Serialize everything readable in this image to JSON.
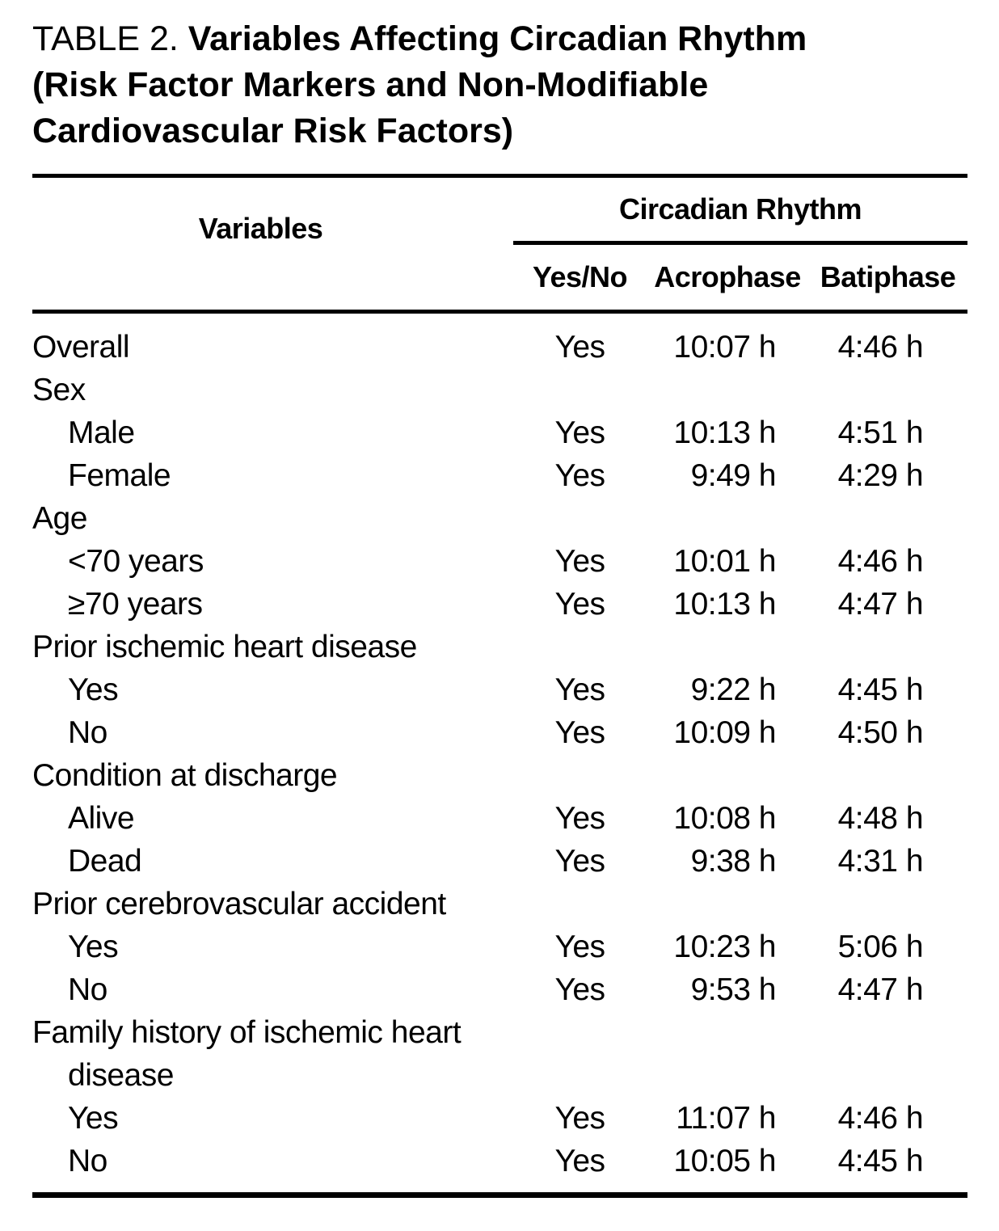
{
  "title": {
    "prefix": "TABLE 2. ",
    "main": "Variables Affecting Circadian Rhythm (Risk Factor Markers and Non-Modifiable Cardiovascular Risk Factors)"
  },
  "colors": {
    "text": "#000000",
    "background": "#ffffff",
    "rule": "#000000"
  },
  "table": {
    "headers": {
      "variables": "Variables",
      "group": "Circadian Rhythm",
      "yes_no": "Yes/No",
      "acrophase": "Acrophase",
      "batiphase": "Batiphase"
    },
    "rows": [
      {
        "label": "Overall",
        "indent": 0,
        "yes_no": "Yes",
        "acrophase": "10:07 h",
        "batiphase": "4:46 h"
      },
      {
        "label": "Sex",
        "indent": 0
      },
      {
        "label": "Male",
        "indent": 1,
        "yes_no": "Yes",
        "acrophase": "10:13 h",
        "batiphase": "4:51 h"
      },
      {
        "label": "Female",
        "indent": 1,
        "yes_no": "Yes",
        "acrophase": "9:49 h",
        "batiphase": "4:29 h"
      },
      {
        "label": "Age",
        "indent": 0
      },
      {
        "label": "<70 years",
        "indent": 1,
        "yes_no": "Yes",
        "acrophase": "10:01 h",
        "batiphase": "4:46 h"
      },
      {
        "label": "≥70 years",
        "indent": 1,
        "yes_no": "Yes",
        "acrophase": "10:13 h",
        "batiphase": "4:47 h"
      },
      {
        "label": "Prior ischemic heart disease",
        "indent": 0
      },
      {
        "label": "Yes",
        "indent": 1,
        "yes_no": "Yes",
        "acrophase": "9:22 h",
        "batiphase": "4:45 h"
      },
      {
        "label": "No",
        "indent": 1,
        "yes_no": "Yes",
        "acrophase": "10:09 h",
        "batiphase": "4:50 h"
      },
      {
        "label": "Condition at discharge",
        "indent": 0
      },
      {
        "label": "Alive",
        "indent": 1,
        "yes_no": "Yes",
        "acrophase": "10:08 h",
        "batiphase": "4:48 h"
      },
      {
        "label": "Dead",
        "indent": 1,
        "yes_no": "Yes",
        "acrophase": "9:38 h",
        "batiphase": "4:31 h"
      },
      {
        "label": "Prior cerebrovascular accident",
        "indent": 0
      },
      {
        "label": "Yes",
        "indent": 1,
        "yes_no": "Yes",
        "acrophase": "10:23 h",
        "batiphase": "5:06 h"
      },
      {
        "label": "No",
        "indent": 1,
        "yes_no": "Yes",
        "acrophase": "9:53 h",
        "batiphase": "4:47 h"
      },
      {
        "label": "Family history of ischemic heart\ndisease",
        "indent": 0
      },
      {
        "label": "Yes",
        "indent": 1,
        "yes_no": "Yes",
        "acrophase": "11:07 h",
        "batiphase": "4:46 h"
      },
      {
        "label": "No",
        "indent": 1,
        "yes_no": "Yes",
        "acrophase": "10:05 h",
        "batiphase": "4:45 h"
      }
    ]
  }
}
